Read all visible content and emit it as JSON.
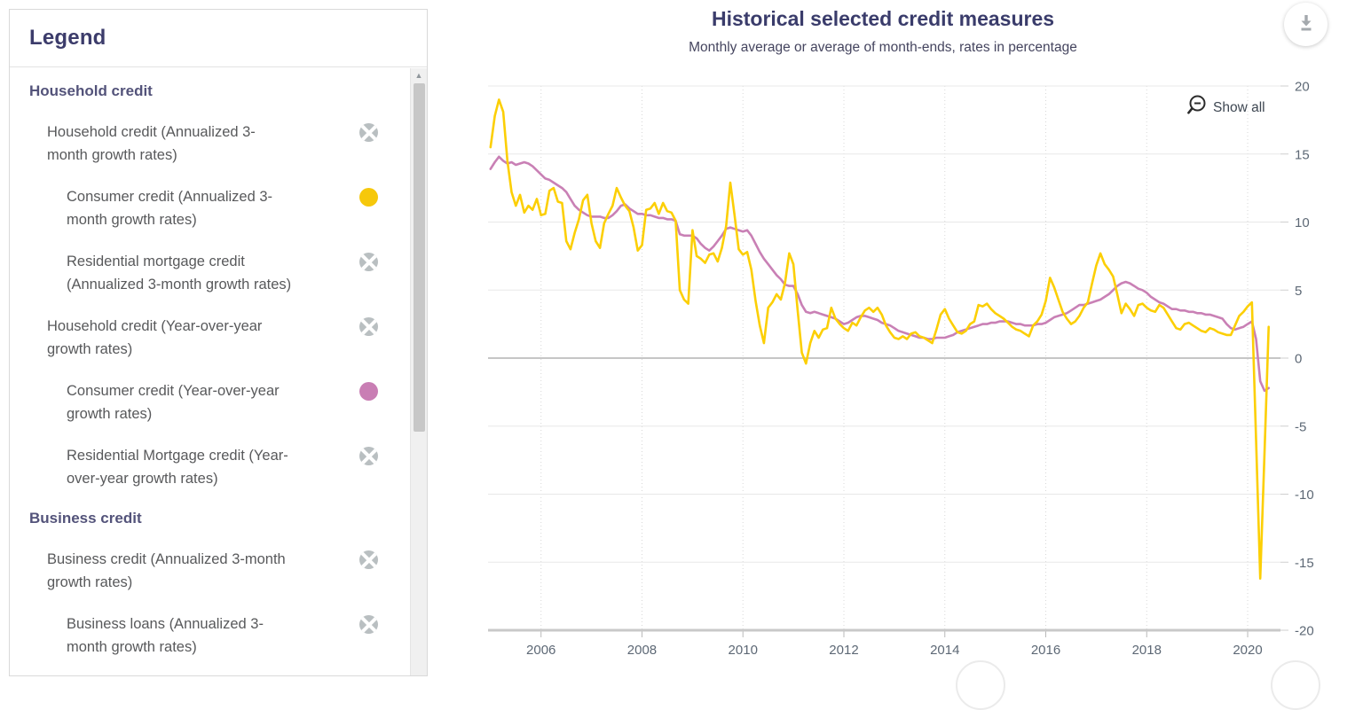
{
  "legend": {
    "title": "Legend",
    "sections": [
      {
        "title": "Household credit",
        "items": [
          {
            "label": "Household credit (Annualized 3-month growth rates)",
            "level": 1,
            "on": false
          },
          {
            "label": "Consumer credit (Annualized 3-month growth rates)",
            "level": 2,
            "on": true,
            "color": "#f6c80b"
          },
          {
            "label": "Residential mortgage credit (Annualized 3-month growth rates)",
            "level": 2,
            "on": false
          },
          {
            "label": "Household credit (Year-over-year growth rates)",
            "level": 1,
            "on": false
          },
          {
            "label": "Consumer credit (Year-over-year growth rates)",
            "level": 2,
            "on": true,
            "color": "#c97eb4"
          },
          {
            "label": "Residential Mortgage credit (Year-over-year growth rates)",
            "level": 2,
            "on": false
          }
        ]
      },
      {
        "title": "Business credit",
        "items": [
          {
            "label": "Business credit (Annualized 3-month growth rates)",
            "level": 1,
            "on": false
          },
          {
            "label": "Business loans (Annualized 3-month growth rates)",
            "level": 2,
            "on": false
          }
        ]
      }
    ]
  },
  "header": {
    "title": "Historical selected credit measures",
    "subtitle": "Monthly average or average of month-ends, rates in percentage",
    "show_all_label": "Show all"
  },
  "icons": {
    "download": "download-icon",
    "zoom_out": "zoom-out-magnifier-icon",
    "scroll_up": "scroll-up-arrow-icon",
    "series_hidden": "crossed-circle-icon",
    "series_visible": "colored-dot-icon"
  },
  "colors": {
    "accent_yellow": "#fccf05",
    "accent_pink": "#c980b5",
    "disabled_gray": "#b9bfc1",
    "title_navy": "#3a3c6b",
    "gridline": "#e8e8e8",
    "zero_line": "#b3b3b3",
    "axis_line": "#c9c9c9"
  },
  "chart_data": {
    "type": "line",
    "title": "Historical selected credit measures",
    "subtitle": "Monthly average or average of month-ends, rates in percentage",
    "xlabel": "",
    "ylabel": "",
    "x_start_year": 2005.0,
    "x_step_months": 1,
    "xlim": [
      2004.95,
      2020.65
    ],
    "ylim": [
      -20,
      20
    ],
    "xticks": [
      2006,
      2008,
      2010,
      2012,
      2014,
      2016,
      2018,
      2020
    ],
    "yticks": [
      20,
      15,
      10,
      5,
      0,
      -5,
      -10,
      -15,
      -20
    ],
    "grid": true,
    "legend_position": "left-panel",
    "series": [
      {
        "name": "Consumer credit (Year-over-year growth rates)",
        "color": "#c980b5",
        "values": [
          13.9,
          14.4,
          14.8,
          14.5,
          14.3,
          14.4,
          14.2,
          14.3,
          14.4,
          14.3,
          14.1,
          13.8,
          13.5,
          13.2,
          13.1,
          12.9,
          12.7,
          12.5,
          12.2,
          11.7,
          11.2,
          10.9,
          10.7,
          10.5,
          10.4,
          10.4,
          10.4,
          10.3,
          10.3,
          10.5,
          10.8,
          11.2,
          11.3,
          11.0,
          10.8,
          10.6,
          10.6,
          10.5,
          10.5,
          10.4,
          10.3,
          10.3,
          10.2,
          10.2,
          10.1,
          9.1,
          9.0,
          9.0,
          9.0,
          8.8,
          8.4,
          8.1,
          7.9,
          8.2,
          8.6,
          9.0,
          9.5,
          9.6,
          9.5,
          9.4,
          9.3,
          9.4,
          9.0,
          8.4,
          7.8,
          7.3,
          6.9,
          6.5,
          6.1,
          5.8,
          5.4,
          5.3,
          5.3,
          4.7,
          3.9,
          3.4,
          3.3,
          3.4,
          3.3,
          3.2,
          3.1,
          3.0,
          2.9,
          2.7,
          2.5,
          2.6,
          2.8,
          3.0,
          3.1,
          3.1,
          3.0,
          2.9,
          2.8,
          2.6,
          2.5,
          2.4,
          2.2,
          2.0,
          1.9,
          1.8,
          1.7,
          1.6,
          1.5,
          1.5,
          1.4,
          1.4,
          1.5,
          1.5,
          1.5,
          1.6,
          1.7,
          1.9,
          2.0,
          2.1,
          2.2,
          2.3,
          2.4,
          2.5,
          2.5,
          2.6,
          2.6,
          2.7,
          2.7,
          2.7,
          2.6,
          2.5,
          2.5,
          2.4,
          2.4,
          2.4,
          2.5,
          2.5,
          2.6,
          2.8,
          3.0,
          3.1,
          3.2,
          3.3,
          3.5,
          3.7,
          3.9,
          3.9,
          4.0,
          4.1,
          4.2,
          4.3,
          4.5,
          4.7,
          5.0,
          5.3,
          5.5,
          5.6,
          5.5,
          5.3,
          5.1,
          5.0,
          4.8,
          4.5,
          4.3,
          4.1,
          4.0,
          3.8,
          3.6,
          3.6,
          3.5,
          3.5,
          3.4,
          3.4,
          3.3,
          3.3,
          3.2,
          3.2,
          3.1,
          3.0,
          2.9,
          2.5,
          2.2,
          2.1,
          2.2,
          2.3,
          2.5,
          2.7,
          1.4,
          -1.7,
          -2.4,
          -2.2
        ]
      },
      {
        "name": "Consumer credit (Annualized 3-month growth rates)",
        "color": "#fccf05",
        "values": [
          15.5,
          17.8,
          19.0,
          18.1,
          14.5,
          12.2,
          11.2,
          12.0,
          10.7,
          11.2,
          10.9,
          11.7,
          10.5,
          10.6,
          12.3,
          12.5,
          11.5,
          11.4,
          8.6,
          8.0,
          9.2,
          10.2,
          11.6,
          12.0,
          9.9,
          8.6,
          8.1,
          9.9,
          10.6,
          11.2,
          12.5,
          11.8,
          11.2,
          10.8,
          9.6,
          7.9,
          8.3,
          10.9,
          11.0,
          11.4,
          10.6,
          11.4,
          10.8,
          10.7,
          10.1,
          5.0,
          4.3,
          4.0,
          9.4,
          7.5,
          7.3,
          7.0,
          7.6,
          7.7,
          7.1,
          8.1,
          9.7,
          12.9,
          10.5,
          8.0,
          7.6,
          7.8,
          6.5,
          4.2,
          2.4,
          1.1,
          3.7,
          4.1,
          4.7,
          4.3,
          5.5,
          7.7,
          6.9,
          3.5,
          0.4,
          -0.4,
          1.1,
          2.0,
          1.5,
          2.1,
          2.2,
          3.7,
          2.9,
          2.5,
          2.2,
          2.0,
          2.6,
          2.4,
          3.0,
          3.5,
          3.7,
          3.4,
          3.7,
          3.2,
          2.4,
          1.9,
          1.5,
          1.4,
          1.6,
          1.4,
          1.8,
          1.9,
          1.6,
          1.5,
          1.3,
          1.1,
          2.1,
          3.2,
          3.6,
          2.9,
          2.4,
          1.9,
          1.8,
          2.0,
          2.5,
          2.7,
          3.9,
          3.8,
          4.0,
          3.6,
          3.3,
          3.1,
          2.9,
          2.6,
          2.3,
          2.1,
          2.0,
          1.8,
          1.6,
          2.4,
          2.7,
          3.2,
          4.2,
          5.9,
          5.2,
          4.3,
          3.4,
          2.9,
          2.5,
          2.7,
          3.1,
          3.7,
          4.1,
          5.5,
          6.8,
          7.7,
          6.9,
          6.5,
          6.0,
          4.7,
          3.3,
          4.0,
          3.6,
          3.1,
          3.9,
          4.0,
          3.7,
          3.5,
          3.4,
          3.9,
          3.7,
          3.2,
          2.7,
          2.2,
          2.1,
          2.5,
          2.6,
          2.4,
          2.2,
          2.0,
          1.9,
          2.2,
          2.1,
          1.9,
          1.8,
          1.7,
          1.7,
          2.4,
          3.1,
          3.4,
          3.8,
          4.1,
          -6.0,
          -16.2,
          -7.0,
          2.3
        ]
      }
    ]
  }
}
